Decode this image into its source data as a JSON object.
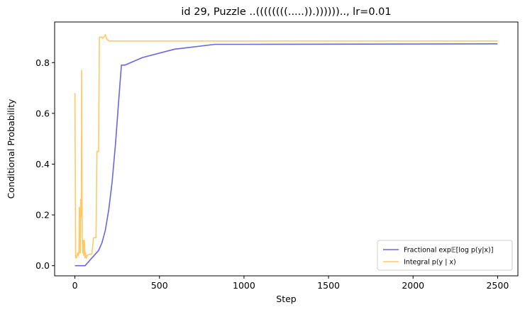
{
  "chart_data": {
    "type": "line",
    "title": "id 29, Puzzle ..((((((((.....)).))))))..,  lr=0.01",
    "xlabel": "Step",
    "ylabel": "Conditional Probability",
    "xlim": [
      -120,
      2620
    ],
    "ylim": [
      -0.04,
      0.96
    ],
    "xticks": [
      0,
      500,
      1000,
      1500,
      2000,
      2500
    ],
    "yticks": [
      0.0,
      0.2,
      0.4,
      0.6,
      0.8
    ],
    "xtick_labels": [
      "0",
      "500",
      "1000",
      "1500",
      "2000",
      "2500"
    ],
    "ytick_labels": [
      "0.0",
      "0.2",
      "0.4",
      "0.6",
      "0.8"
    ],
    "grid": false,
    "legend_position": "lower-right",
    "series": [
      {
        "name": "Fractional exp𝔼[log p(y|x)]",
        "color": "#6a66e0",
        "x": [
          0,
          30,
          60,
          80,
          100,
          120,
          140,
          160,
          180,
          200,
          220,
          240,
          260,
          275,
          285,
          295,
          400,
          590,
          830,
          1000,
          2500
        ],
        "y": [
          0.0,
          0.0,
          0.0,
          0.015,
          0.03,
          0.045,
          0.06,
          0.09,
          0.14,
          0.22,
          0.33,
          0.48,
          0.66,
          0.79,
          0.79,
          0.79,
          0.82,
          0.853,
          0.872,
          0.872,
          0.874
        ]
      },
      {
        "name": "Integral p(y | x)",
        "color": "#ffc966",
        "x": [
          0,
          2,
          4,
          8,
          12,
          16,
          20,
          24,
          26,
          28,
          30,
          32,
          34,
          36,
          38,
          40,
          42,
          44,
          46,
          48,
          50,
          52,
          54,
          56,
          58,
          60,
          62,
          64,
          68,
          72,
          76,
          80,
          90,
          100,
          110,
          120,
          125,
          130,
          135,
          140,
          145,
          150,
          155,
          160,
          165,
          170,
          175,
          180,
          185,
          190,
          195,
          200,
          260,
          400,
          1000,
          2500
        ],
        "y": [
          0.68,
          0.4,
          0.03,
          0.03,
          0.04,
          0.05,
          0.04,
          0.06,
          0.23,
          0.05,
          0.22,
          0.05,
          0.26,
          0.19,
          0.27,
          0.77,
          0.27,
          0.08,
          0.05,
          0.1,
          0.05,
          0.04,
          0.1,
          0.1,
          0.07,
          0.03,
          0.05,
          0.04,
          0.03,
          0.04,
          0.04,
          0.045,
          0.045,
          0.045,
          0.11,
          0.11,
          0.11,
          0.45,
          0.45,
          0.45,
          0.9,
          0.9,
          0.9,
          0.9,
          0.895,
          0.9,
          0.905,
          0.91,
          0.9,
          0.89,
          0.89,
          0.885,
          0.885,
          0.885,
          0.885,
          0.885
        ]
      }
    ]
  }
}
